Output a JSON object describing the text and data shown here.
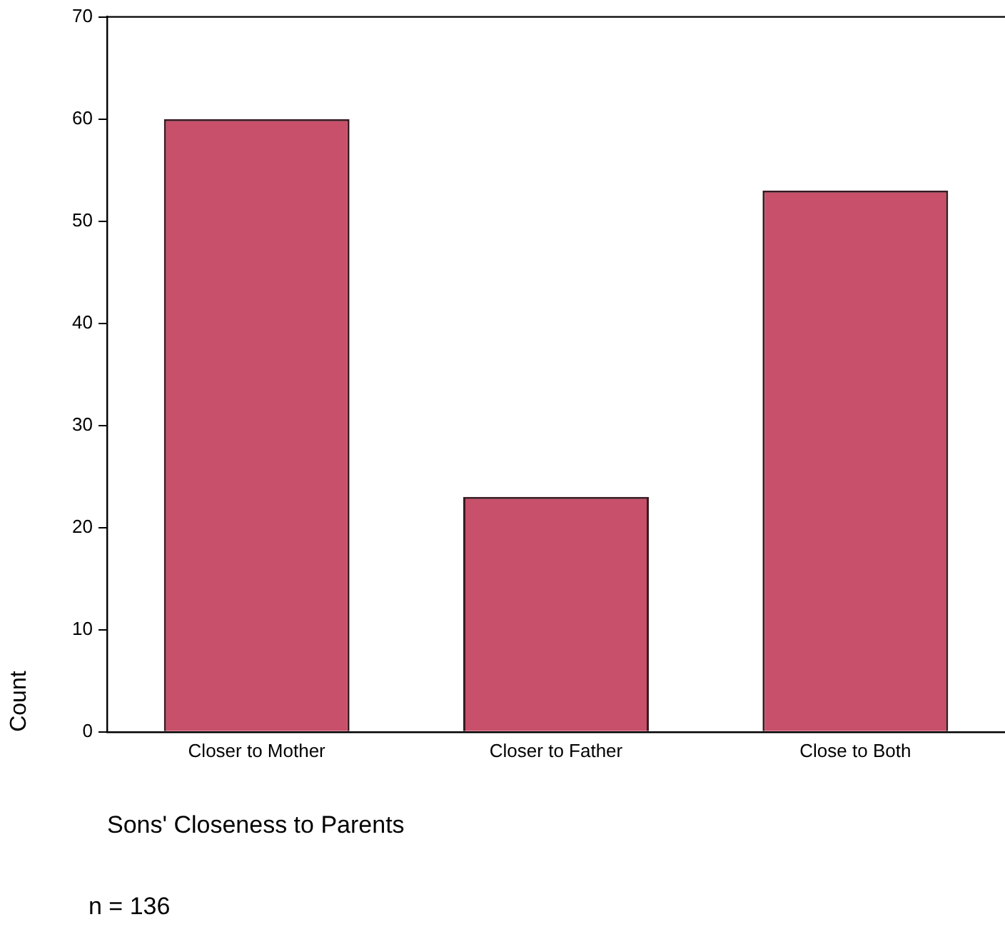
{
  "chart_data": {
    "type": "bar",
    "xlabel": "Sons' Closeness to Parents",
    "ylabel": "Count",
    "categories": [
      "Closer to Mother",
      "Closer to Father",
      "Close to Both"
    ],
    "values": [
      60,
      23,
      53
    ],
    "color": "#c8506a",
    "ylim": [
      0,
      70
    ],
    "yticks": [
      0,
      10,
      20,
      30,
      40,
      50,
      60,
      70
    ],
    "grid": false,
    "legend": false,
    "annotations": [
      "n = 136"
    ]
  }
}
